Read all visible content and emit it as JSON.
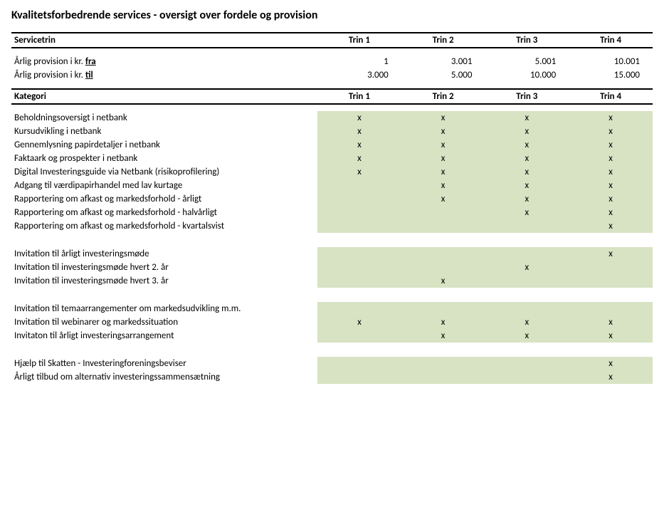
{
  "colors": {
    "background": "#ffffff",
    "text": "#000000",
    "rule": "#000000",
    "shade": "#d7e3c3"
  },
  "title": "Kvalitetsforbedrende services - oversigt over fordele og provision",
  "tierHeader": {
    "label": "Servicetrin",
    "tiers": [
      "Trin 1",
      "Trin 2",
      "Trin 3",
      "Trin 4"
    ]
  },
  "provisionRows": [
    {
      "labelPrefix": "Årlig provision i kr. ",
      "labelEmph": "fra",
      "values": [
        "1",
        "3.001",
        "5.001",
        "10.001"
      ]
    },
    {
      "labelPrefix": "Årlig provision i kr. ",
      "labelEmph": "til",
      "values": [
        "3.000",
        "5.000",
        "10.000",
        "15.000"
      ]
    }
  ],
  "categoryHeader": {
    "label": "Kategori",
    "tiers": [
      "Trin 1",
      "Trin 2",
      "Trin 3",
      "Trin 4"
    ]
  },
  "markGlyph": "x",
  "groups": [
    {
      "rows": [
        {
          "label": "Beholdningsoversigt i netbank",
          "marks": [
            true,
            true,
            true,
            true
          ]
        },
        {
          "label": "Kursudvikling i netbank",
          "marks": [
            true,
            true,
            true,
            true
          ]
        },
        {
          "label": "Gennemlysning papirdetaljer i netbank",
          "marks": [
            true,
            true,
            true,
            true
          ]
        },
        {
          "label": "Faktaark og prospekter i netbank",
          "marks": [
            true,
            true,
            true,
            true
          ]
        },
        {
          "label": "Digital Investeringsguide via Netbank (risikoprofilering)",
          "marks": [
            true,
            true,
            true,
            true
          ]
        },
        {
          "label": "Adgang til værdipapirhandel med lav kurtage",
          "marks": [
            false,
            true,
            true,
            true
          ]
        },
        {
          "label": "Rapportering om afkast og markedsforhold - årligt",
          "marks": [
            false,
            true,
            true,
            true
          ]
        },
        {
          "label": "Rapportering om afkast og markedsforhold - halvårligt",
          "marks": [
            false,
            false,
            true,
            true
          ]
        },
        {
          "label": "Rapportering om afkast og markedsforhold - kvartalsvist",
          "marks": [
            false,
            false,
            false,
            true
          ]
        }
      ]
    },
    {
      "rows": [
        {
          "label": "Invitation til årligt investeringsmøde",
          "marks": [
            false,
            false,
            false,
            true
          ]
        },
        {
          "label": "Invitation til investeringsmøde hvert 2. år",
          "marks": [
            false,
            false,
            true,
            false
          ]
        },
        {
          "label": "Invitation til investeringsmøde hvert 3. år",
          "marks": [
            false,
            true,
            false,
            false
          ]
        }
      ]
    },
    {
      "rows": [
        {
          "label": "Invitation til temaarrangementer om markedsudvikling m.m.",
          "marks": [
            false,
            false,
            false,
            false
          ]
        },
        {
          "label": "Invitation til webinarer og markedssituation",
          "marks": [
            true,
            true,
            true,
            true
          ]
        },
        {
          "label": "Invitaton til årligt investeringsarrangement",
          "marks": [
            false,
            true,
            true,
            true
          ]
        }
      ]
    },
    {
      "rows": [
        {
          "label": "Hjælp til Skatten - Investeringforeningsbeviser",
          "marks": [
            false,
            false,
            false,
            true
          ]
        },
        {
          "label": "Årligt tilbud om alternativ investeringssammensætning",
          "marks": [
            false,
            false,
            false,
            true
          ]
        }
      ]
    }
  ]
}
